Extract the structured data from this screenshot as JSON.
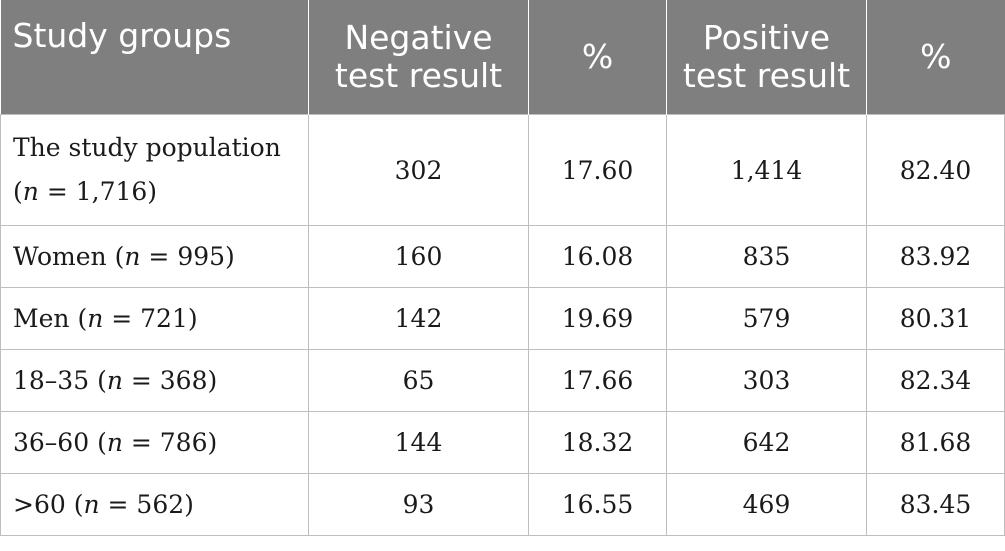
{
  "table": {
    "headers": [
      "Study groups",
      "Negative test result",
      "%",
      "Positive test result",
      "%"
    ],
    "rows": [
      {
        "group": "The study population",
        "n": "1,716",
        "negative": "302",
        "neg_pct": "17.60",
        "positive": "1,414",
        "pos_pct": "82.40"
      },
      {
        "group": "Women",
        "n": "995",
        "negative": "160",
        "neg_pct": "16.08",
        "positive": "835",
        "pos_pct": "83.92"
      },
      {
        "group": "Men",
        "n": "721",
        "negative": "142",
        "neg_pct": "19.69",
        "positive": "579",
        "pos_pct": "80.31"
      },
      {
        "group": "18–35",
        "n": "368",
        "negative": "65",
        "neg_pct": "17.66",
        "positive": "303",
        "pos_pct": "82.34"
      },
      {
        "group": "36–60",
        "n": "786",
        "negative": "144",
        "neg_pct": "18.32",
        "positive": "642",
        "pos_pct": "81.68"
      },
      {
        "group": ">60",
        "n": "562",
        "negative": "93",
        "neg_pct": "16.55",
        "positive": "469",
        "pos_pct": "83.45"
      }
    ]
  }
}
